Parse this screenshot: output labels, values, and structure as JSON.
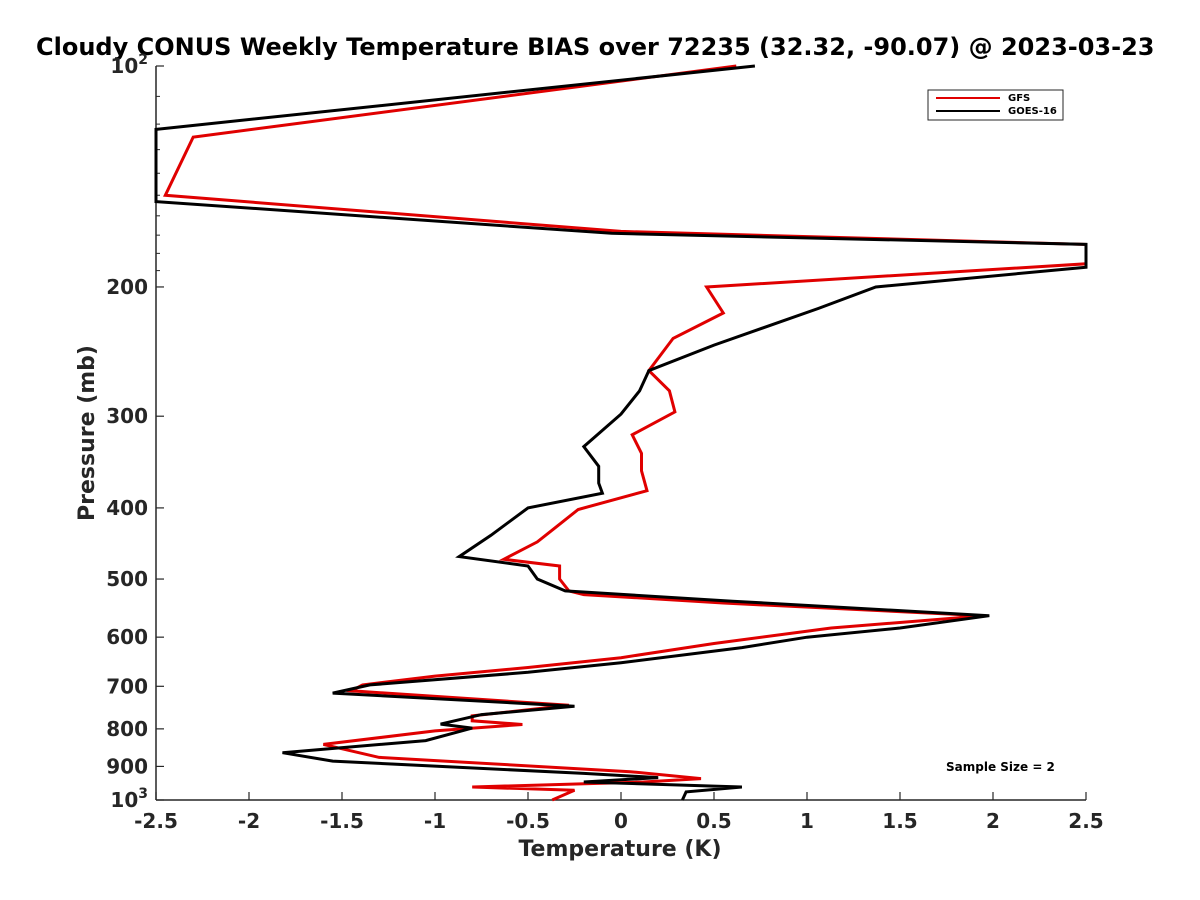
{
  "chart_data": {
    "type": "line",
    "title": "Cloudy CONUS Weekly Temperature BIAS over 72235 (32.32, -90.07) @ 2023-03-23",
    "xlabel": "Temperature (K)",
    "ylabel": "Pressure (mb)",
    "xlim": [
      -2.5,
      2.5
    ],
    "ylim": [
      100,
      1000
    ],
    "yscale": "log",
    "y_reversed": true,
    "grid": false,
    "x_ticks": [
      "-2.5",
      "-2",
      "-1.5",
      "-1",
      "-0.5",
      "0",
      "0.5",
      "1",
      "1.5",
      "2",
      "2.5"
    ],
    "y_ticks": [
      {
        "label": "100",
        "base": "10",
        "exp": "2"
      },
      {
        "label": "200"
      },
      {
        "label": "300"
      },
      {
        "label": "400"
      },
      {
        "label": "500"
      },
      {
        "label": "600"
      },
      {
        "label": "700"
      },
      {
        "label": "800"
      },
      {
        "label": "900"
      },
      {
        "label": "1000",
        "base": "10",
        "exp": "3"
      }
    ],
    "legend": {
      "location": "top-right",
      "entries": [
        "GFS",
        "GOES-16"
      ]
    },
    "annotation": "Sample Size = 2",
    "series": [
      {
        "name": "GFS",
        "color": "#e00000",
        "points": [
          [
            0.62,
            100
          ],
          [
            -2.3,
            125
          ],
          [
            -2.45,
            150
          ],
          [
            0.0,
            168
          ],
          [
            2.5,
            175
          ],
          [
            2.5,
            186
          ],
          [
            0.46,
            200
          ],
          [
            0.55,
            217
          ],
          [
            0.28,
            235
          ],
          [
            0.15,
            260
          ],
          [
            0.26,
            277
          ],
          [
            0.29,
            296
          ],
          [
            0.06,
            318
          ],
          [
            0.11,
            337
          ],
          [
            0.11,
            356
          ],
          [
            0.14,
            379
          ],
          [
            -0.23,
            402
          ],
          [
            -0.35,
            425
          ],
          [
            -0.45,
            445
          ],
          [
            -0.63,
            470
          ],
          [
            -0.33,
            480
          ],
          [
            -0.33,
            500
          ],
          [
            -0.28,
            519
          ],
          [
            -0.2,
            525
          ],
          [
            0.55,
            539
          ],
          [
            1.95,
            561
          ],
          [
            1.13,
            583
          ],
          [
            0.5,
            612
          ],
          [
            0.0,
            640
          ],
          [
            -0.5,
            660
          ],
          [
            -1.0,
            678
          ],
          [
            -1.39,
            697
          ],
          [
            -1.45,
            710
          ],
          [
            -0.28,
            743
          ],
          [
            -0.8,
            768
          ],
          [
            -0.8,
            780
          ],
          [
            -0.53,
            789
          ],
          [
            -1.0,
            805
          ],
          [
            -1.6,
            840
          ],
          [
            -1.3,
            875
          ],
          [
            0.05,
            915
          ],
          [
            0.43,
            935
          ],
          [
            0.12,
            945
          ],
          [
            -0.8,
            960
          ],
          [
            -0.25,
            970
          ],
          [
            -0.37,
            1000
          ]
        ]
      },
      {
        "name": "GOES-16",
        "color": "#000000",
        "points": [
          [
            0.72,
            100
          ],
          [
            -2.5,
            122
          ],
          [
            -2.5,
            153
          ],
          [
            -0.05,
            169
          ],
          [
            2.5,
            175
          ],
          [
            2.5,
            188
          ],
          [
            1.37,
            200
          ],
          [
            1.06,
            214
          ],
          [
            0.5,
            240
          ],
          [
            0.15,
            260
          ],
          [
            0.1,
            277
          ],
          [
            0.0,
            298
          ],
          [
            -0.2,
            330
          ],
          [
            -0.12,
            351
          ],
          [
            -0.12,
            370
          ],
          [
            -0.1,
            382
          ],
          [
            -0.5,
            400
          ],
          [
            -0.7,
            436
          ],
          [
            -0.87,
            466
          ],
          [
            -0.5,
            480
          ],
          [
            -0.45,
            500
          ],
          [
            -0.3,
            519
          ],
          [
            0.6,
            536
          ],
          [
            1.98,
            561
          ],
          [
            1.5,
            583
          ],
          [
            1.0,
            600
          ],
          [
            0.65,
            620
          ],
          [
            0.0,
            650
          ],
          [
            -0.5,
            670
          ],
          [
            -1.35,
            697
          ],
          [
            -1.55,
            715
          ],
          [
            -0.25,
            745
          ],
          [
            -0.75,
            765
          ],
          [
            -0.97,
            788
          ],
          [
            -0.8,
            798
          ],
          [
            -1.05,
            830
          ],
          [
            -1.82,
            862
          ],
          [
            -1.55,
            885
          ],
          [
            -0.2,
            920
          ],
          [
            0.2,
            932
          ],
          [
            -0.2,
            945
          ],
          [
            0.65,
            960
          ],
          [
            0.35,
            975
          ],
          [
            0.33,
            1000
          ]
        ]
      }
    ]
  }
}
